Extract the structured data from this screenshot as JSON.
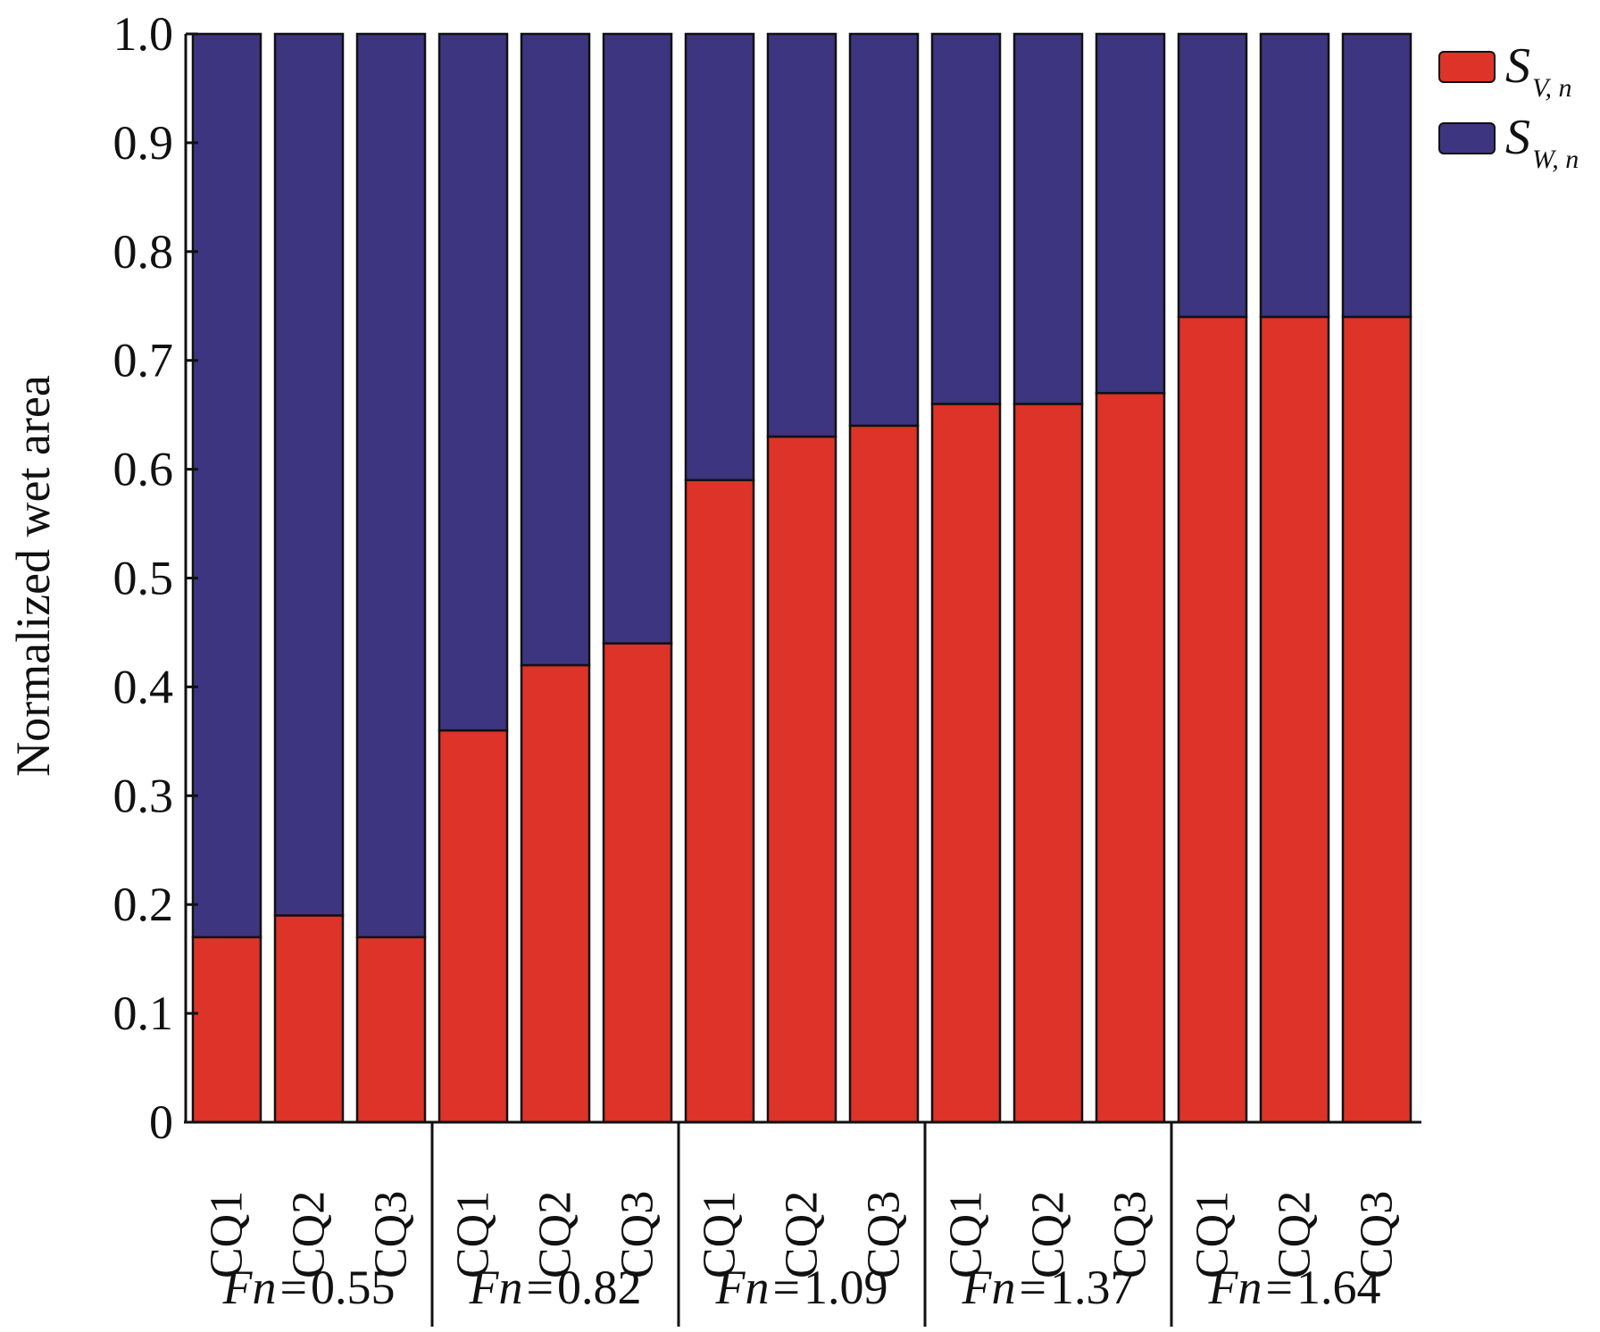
{
  "chart_data": {
    "type": "bar",
    "stacked": true,
    "ylabel": "Normalized wet area",
    "xlabel": "",
    "ylim": [
      0,
      1.0
    ],
    "yticks": [
      "0",
      "0.1",
      "0.2",
      "0.3",
      "0.4",
      "0.5",
      "0.6",
      "0.7",
      "0.8",
      "0.9",
      "1.0"
    ],
    "grid": false,
    "legend_position": "top-right",
    "groups": [
      {
        "label_var": "Fn",
        "label_eq": "=",
        "label_val": "0.55",
        "categories": [
          "CQ1",
          "CQ2",
          "CQ3"
        ]
      },
      {
        "label_var": "Fn",
        "label_eq": "=",
        "label_val": "0.82",
        "categories": [
          "CQ1",
          "CQ2",
          "CQ3"
        ]
      },
      {
        "label_var": "Fn",
        "label_eq": "=",
        "label_val": "1.09",
        "categories": [
          "CQ1",
          "CQ2",
          "CQ3"
        ]
      },
      {
        "label_var": "Fn",
        "label_eq": "=",
        "label_val": "1.37",
        "categories": [
          "CQ1",
          "CQ2",
          "CQ3"
        ]
      },
      {
        "label_var": "Fn",
        "label_eq": "=",
        "label_val": "1.64",
        "categories": [
          "CQ1",
          "CQ2",
          "CQ3"
        ]
      }
    ],
    "series": [
      {
        "name_main": "S",
        "name_sub": "V, n",
        "color": "#dd3328",
        "values": [
          0.17,
          0.19,
          0.17,
          0.36,
          0.42,
          0.44,
          0.59,
          0.63,
          0.64,
          0.66,
          0.66,
          0.67,
          0.74,
          0.74,
          0.74
        ]
      },
      {
        "name_main": "S",
        "name_sub": "W, n",
        "color": "#3d3580",
        "values": [
          0.83,
          0.81,
          0.83,
          0.64,
          0.58,
          0.56,
          0.41,
          0.37,
          0.36,
          0.34,
          0.34,
          0.33,
          0.26,
          0.26,
          0.26
        ]
      }
    ]
  }
}
